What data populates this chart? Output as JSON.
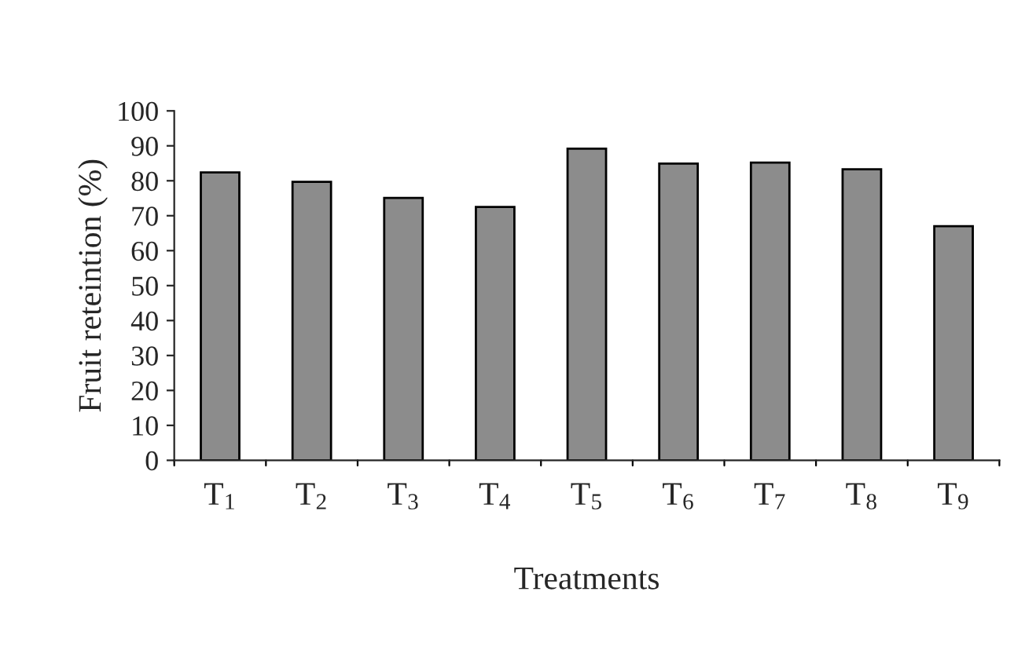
{
  "chart_data": {
    "type": "bar",
    "xlabel": "Treatments",
    "ylabel": "Fruit reteintion (%)",
    "categories": [
      "T$_{1}$",
      "T$_{2}$",
      "T$_{3}$",
      "T$_{4}$",
      "T$_{5}$",
      "T$_{6}$",
      "T$_{7}$",
      "T$_{8}$",
      "T$_{9}$"
    ],
    "values": [
      82.4,
      79.7,
      75.1,
      72.5,
      89.2,
      84.9,
      85.2,
      83.3,
      67.0
    ],
    "color": "#8c8c8c",
    "ylim": [
      0,
      100
    ],
    "yticks": [
      0,
      10,
      20,
      30,
      40,
      50,
      60,
      70,
      80,
      90,
      100
    ],
    "grid": false,
    "legend": false
  }
}
